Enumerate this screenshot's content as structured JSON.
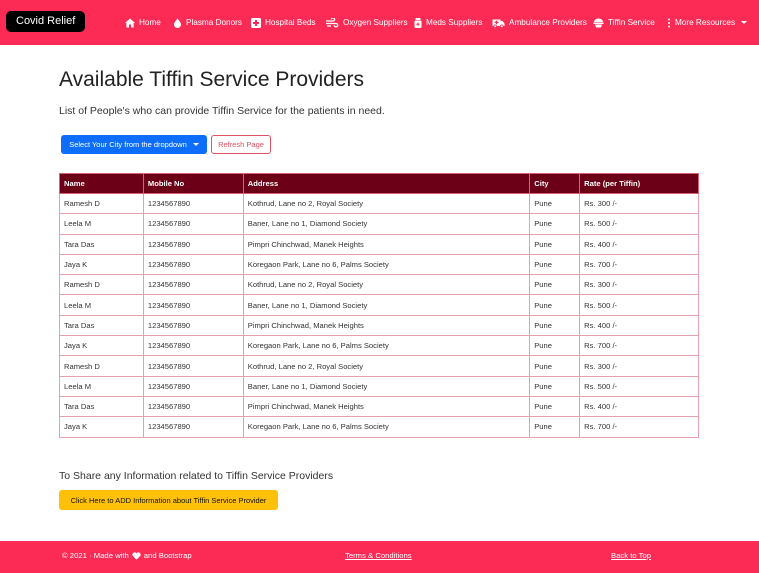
{
  "nav": {
    "brand": "Covid Relief",
    "items": [
      {
        "label": "Home",
        "icon": "home-icon"
      },
      {
        "label": "Plasma Donors",
        "icon": "drop-icon"
      },
      {
        "label": "Hospital Beds",
        "icon": "hospital-plus-icon"
      },
      {
        "label": "Oxygen Suppliers",
        "icon": "oxygen-icon"
      },
      {
        "label": "Meds Suppliers",
        "icon": "medicine-bottle-icon"
      },
      {
        "label": "Ambulance Providers",
        "icon": "ambulance-icon"
      },
      {
        "label": "Tiffin Service",
        "icon": "tiffin-icon"
      },
      {
        "label": "More Resources",
        "icon": "kebab-icon"
      }
    ]
  },
  "page": {
    "title": "Available Tiffin Service Providers",
    "subtitle": "List of People's who can provide Tiffin Service for the patients in need.",
    "city_button": "Select Your City from the dropdown",
    "refresh_button": "Refresh Page"
  },
  "table": {
    "headers": [
      "Name",
      "Mobile No",
      "Address",
      "City",
      "Rate (per Tiffin)"
    ],
    "rows": [
      [
        "Ramesh D",
        "1234567890",
        "Kothrud, Lane no 2, Royal Society",
        "Pune",
        "Rs. 300 /-"
      ],
      [
        "Leela M",
        "1234567890",
        "Baner, Lane no 1, Diamond Society",
        "Pune",
        "Rs. 500 /-"
      ],
      [
        "Tara Das",
        "1234567890",
        "Pimpri Chinchwad, Manek Heights",
        "Pune",
        "Rs. 400 /-"
      ],
      [
        "Jaya K",
        "1234567890",
        "Koregaon Park, Lane no 6, Palms Society",
        "Pune",
        "Rs. 700 /-"
      ],
      [
        "Ramesh D",
        "1234567890",
        "Kothrud, Lane no 2, Royal Society",
        "Pune",
        "Rs. 300 /-"
      ],
      [
        "Leela M",
        "1234567890",
        "Baner, Lane no 1, Diamond Society",
        "Pune",
        "Rs. 500 /-"
      ],
      [
        "Tara Das",
        "1234567890",
        "Pimpri Chinchwad, Manek Heights",
        "Pune",
        "Rs. 400 /-"
      ],
      [
        "Jaya K",
        "1234567890",
        "Koregaon Park, Lane no 6, Palms Society",
        "Pune",
        "Rs. 700 /-"
      ],
      [
        "Ramesh D",
        "1234567890",
        "Kothrud, Lane no 2, Royal Society",
        "Pune",
        "Rs. 300 /-"
      ],
      [
        "Leela M",
        "1234567890",
        "Baner, Lane no 1, Diamond Society",
        "Pune",
        "Rs. 500 /-"
      ],
      [
        "Tara Das",
        "1234567890",
        "Pimpri Chinchwad, Manek Heights",
        "Pune",
        "Rs. 400 /-"
      ],
      [
        "Jaya K",
        "1234567890",
        "Koregaon Park, Lane no 6, Palms Society",
        "Pune",
        "Rs. 700 /-"
      ]
    ]
  },
  "share": {
    "text": "To Share any Information related to Tiffin Service Providers",
    "button": "Click Here to ADD Information about Tiffin Service Provider"
  },
  "footer": {
    "left_prefix": "© 2021 · Made with",
    "left_suffix": "and Bootstrap",
    "terms": "Terms & Conditions",
    "back_to_top": "Back to Top"
  },
  "colors": {
    "brand": "#fb2b55",
    "table_header": "#6c0016",
    "primary_button": "#0d6efd",
    "warning_button": "#ffc107"
  }
}
